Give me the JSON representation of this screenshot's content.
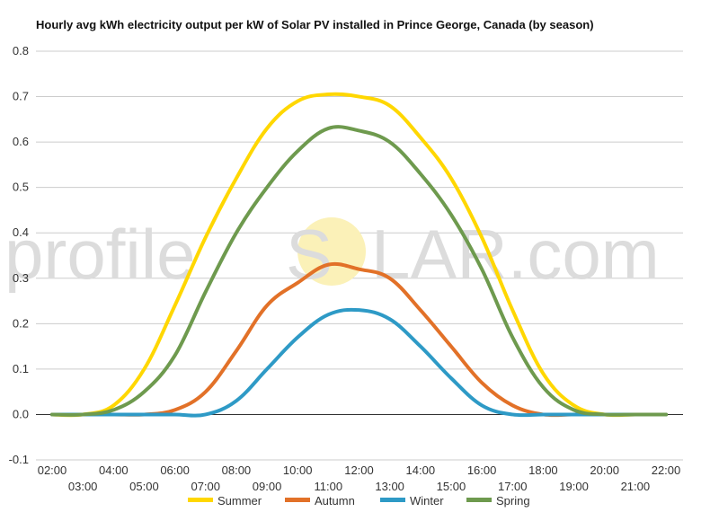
{
  "chart_data": {
    "type": "line",
    "title": "Hourly avg kWh electricity output per kW of Solar PV installed in Prince George, Canada (by season)",
    "watermark": {
      "left": "profile",
      "mid": "S",
      "mid2": "O",
      "right": "LAR.com"
    },
    "categories": [
      "02:00",
      "03:00",
      "04:00",
      "05:00",
      "06:00",
      "07:00",
      "08:00",
      "09:00",
      "10:00",
      "11:00",
      "12:00",
      "13:00",
      "14:00",
      "15:00",
      "16:00",
      "17:00",
      "18:00",
      "19:00",
      "20:00",
      "21:00",
      "22:00"
    ],
    "ylim": [
      -0.1,
      0.8
    ],
    "yticks": [
      "0.8",
      "0.7",
      "0.6",
      "0.5",
      "0.4",
      "0.3",
      "0.2",
      "0.1",
      "0.0",
      "-0.1"
    ],
    "ytick_values": [
      0.8,
      0.7,
      0.6,
      0.5,
      0.4,
      0.3,
      0.2,
      0.1,
      0.0,
      -0.1
    ],
    "grid": true,
    "legend_position": "bottom",
    "series": [
      {
        "name": "Summer",
        "color": "#FFD700",
        "values": [
          0,
          0,
          0.02,
          0.1,
          0.24,
          0.39,
          0.52,
          0.63,
          0.69,
          0.705,
          0.7,
          0.68,
          0.61,
          0.52,
          0.39,
          0.23,
          0.09,
          0.02,
          0,
          0,
          0
        ]
      },
      {
        "name": "Autumn",
        "color": "#E27128",
        "values": [
          0,
          0,
          0,
          0,
          0.01,
          0.05,
          0.14,
          0.24,
          0.29,
          0.33,
          0.32,
          0.3,
          0.23,
          0.15,
          0.07,
          0.02,
          0,
          0,
          0,
          0,
          0
        ]
      },
      {
        "name": "Winter",
        "color": "#2E9AC6",
        "values": [
          0,
          0,
          0,
          0,
          0,
          0,
          0.03,
          0.1,
          0.17,
          0.22,
          0.23,
          0.21,
          0.15,
          0.08,
          0.02,
          0,
          0,
          0,
          0,
          0,
          0
        ]
      },
      {
        "name": "Spring",
        "color": "#6E9A4E",
        "values": [
          0,
          0,
          0.01,
          0.05,
          0.13,
          0.27,
          0.4,
          0.5,
          0.58,
          0.63,
          0.625,
          0.6,
          0.53,
          0.44,
          0.32,
          0.17,
          0.06,
          0.01,
          0,
          0,
          0
        ]
      }
    ]
  }
}
